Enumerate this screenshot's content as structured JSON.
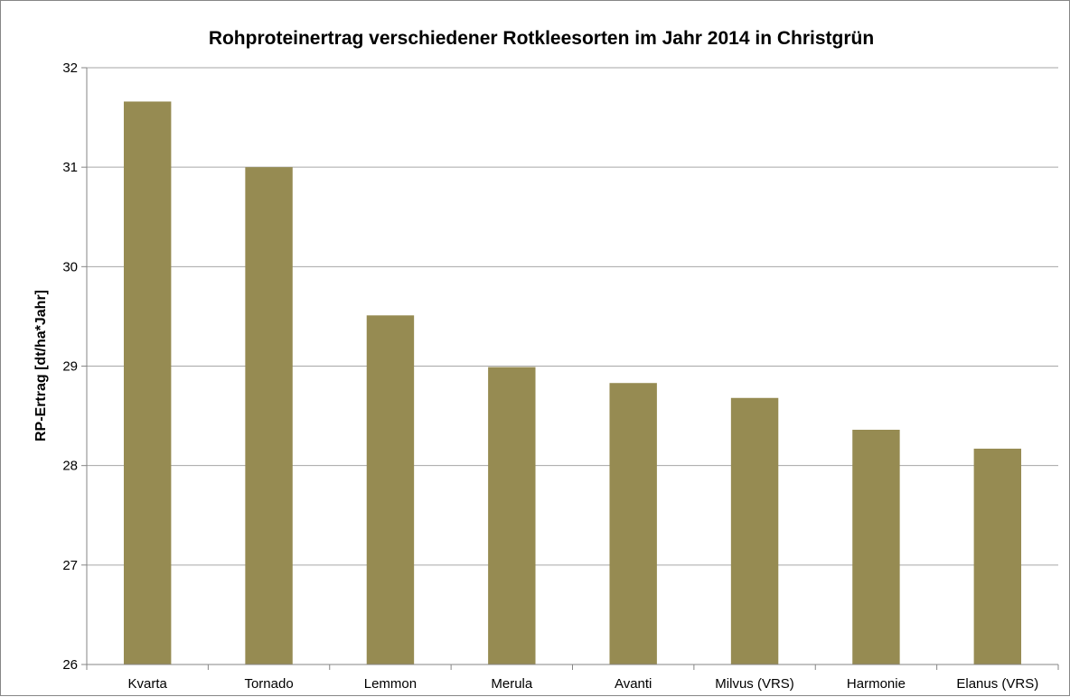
{
  "chart_data": {
    "type": "bar",
    "title": "Rohproteinertrag verschiedener Rotkleesorten im Jahr 2014 in Christgrün",
    "xlabel": "",
    "ylabel": "RP-Ertrag [dt/ha*Jahr]",
    "categories": [
      "Kvarta",
      "Tornado",
      "Lemmon",
      "Merula",
      "Avanti",
      "Milvus (VRS)",
      "Harmonie",
      "Elanus (VRS)"
    ],
    "values": [
      31.66,
      31.0,
      29.51,
      28.99,
      28.83,
      28.68,
      28.36,
      28.17
    ],
    "ylim": [
      26,
      32
    ],
    "yticks": [
      "26",
      "27",
      "28",
      "29",
      "30",
      "31",
      "32"
    ],
    "grid": true,
    "legend": "none",
    "colors": {
      "bar": "#968B52",
      "grid": "#A6A6A6",
      "axis": "#868686"
    }
  }
}
